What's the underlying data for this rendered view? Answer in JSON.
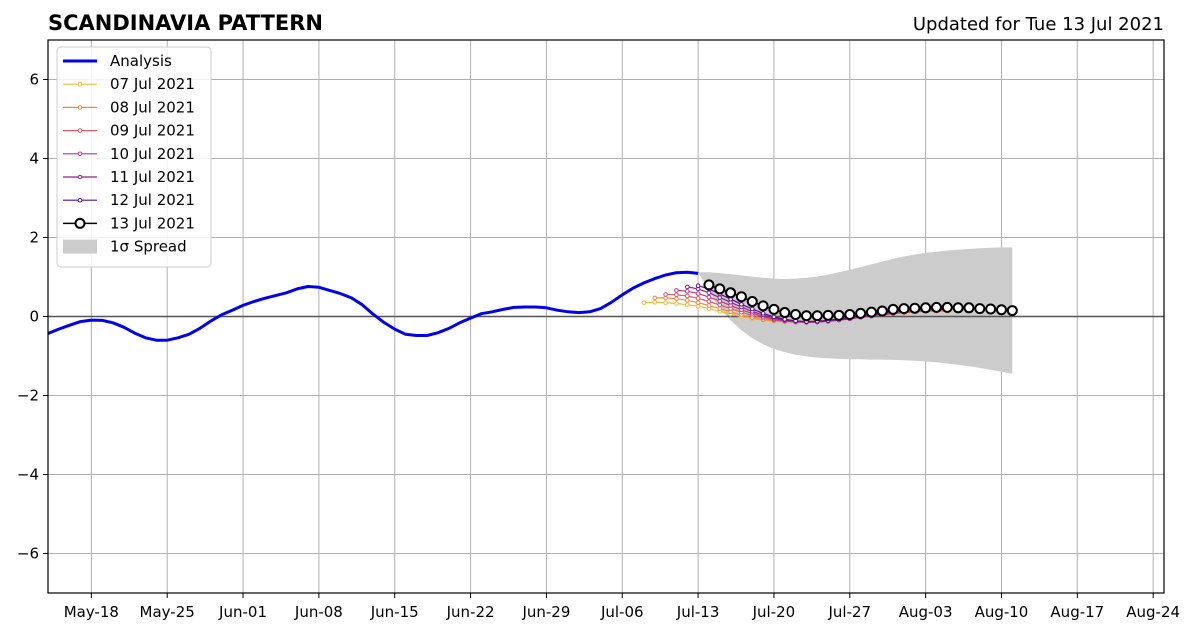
{
  "chart_data": {
    "type": "line",
    "title": "SCANDINAVIA PATTERN",
    "subtitle": "Updated for Tue 13 Jul 2021",
    "xlabel": "",
    "ylabel": "",
    "xlim": [
      "2021-05-14",
      "2021-08-25"
    ],
    "ylim": [
      -7,
      7
    ],
    "grid": true,
    "legend_position": "top-left",
    "x_tick_dates": [
      "2021-05-18",
      "2021-05-25",
      "2021-06-01",
      "2021-06-08",
      "2021-06-15",
      "2021-06-22",
      "2021-06-29",
      "2021-07-06",
      "2021-07-13",
      "2021-07-20",
      "2021-07-27",
      "2021-08-03",
      "2021-08-10",
      "2021-08-17",
      "2021-08-24"
    ],
    "x_tick_labels": [
      "May-18",
      "May-25",
      "Jun-01",
      "Jun-08",
      "Jun-15",
      "Jun-22",
      "Jun-29",
      "Jul-06",
      "Jul-13",
      "Jul-20",
      "Jul-27",
      "Aug-03",
      "Aug-10",
      "Aug-17",
      "Aug-24"
    ],
    "y_ticks": [
      -6,
      -4,
      -2,
      0,
      2,
      4,
      6
    ],
    "y_tick_labels": [
      "−6",
      "−4",
      "−2",
      "0",
      "2",
      "4",
      "6"
    ],
    "analysis": {
      "name": "Analysis",
      "color": "#0000ee",
      "points": [
        [
          "2021-05-14",
          -0.43
        ],
        [
          "2021-05-15",
          -0.32
        ],
        [
          "2021-05-16",
          -0.22
        ],
        [
          "2021-05-17",
          -0.13
        ],
        [
          "2021-05-18",
          -0.09
        ],
        [
          "2021-05-19",
          -0.1
        ],
        [
          "2021-05-20",
          -0.16
        ],
        [
          "2021-05-21",
          -0.27
        ],
        [
          "2021-05-22",
          -0.42
        ],
        [
          "2021-05-23",
          -0.54
        ],
        [
          "2021-05-24",
          -0.6
        ],
        [
          "2021-05-25",
          -0.6
        ],
        [
          "2021-05-26",
          -0.54
        ],
        [
          "2021-05-27",
          -0.45
        ],
        [
          "2021-05-28",
          -0.3
        ],
        [
          "2021-05-29",
          -0.12
        ],
        [
          "2021-05-30",
          0.04
        ],
        [
          "2021-05-31",
          0.16
        ],
        [
          "2021-06-01",
          0.28
        ],
        [
          "2021-06-02",
          0.38
        ],
        [
          "2021-06-03",
          0.46
        ],
        [
          "2021-06-04",
          0.53
        ],
        [
          "2021-06-05",
          0.6
        ],
        [
          "2021-06-06",
          0.7
        ],
        [
          "2021-06-07",
          0.76
        ],
        [
          "2021-06-08",
          0.74
        ],
        [
          "2021-06-09",
          0.66
        ],
        [
          "2021-06-10",
          0.58
        ],
        [
          "2021-06-11",
          0.47
        ],
        [
          "2021-06-12",
          0.3
        ],
        [
          "2021-06-13",
          0.06
        ],
        [
          "2021-06-14",
          -0.15
        ],
        [
          "2021-06-15",
          -0.32
        ],
        [
          "2021-06-16",
          -0.45
        ],
        [
          "2021-06-17",
          -0.48
        ],
        [
          "2021-06-18",
          -0.48
        ],
        [
          "2021-06-19",
          -0.41
        ],
        [
          "2021-06-20",
          -0.3
        ],
        [
          "2021-06-21",
          -0.16
        ],
        [
          "2021-06-22",
          -0.04
        ],
        [
          "2021-06-23",
          0.07
        ],
        [
          "2021-06-24",
          0.12
        ],
        [
          "2021-06-25",
          0.18
        ],
        [
          "2021-06-26",
          0.23
        ],
        [
          "2021-06-27",
          0.24
        ],
        [
          "2021-06-28",
          0.24
        ],
        [
          "2021-06-29",
          0.22
        ],
        [
          "2021-06-30",
          0.16
        ],
        [
          "2021-07-01",
          0.12
        ],
        [
          "2021-07-02",
          0.1
        ],
        [
          "2021-07-03",
          0.12
        ],
        [
          "2021-07-04",
          0.2
        ],
        [
          "2021-07-05",
          0.36
        ],
        [
          "2021-07-06",
          0.55
        ],
        [
          "2021-07-07",
          0.72
        ],
        [
          "2021-07-08",
          0.85
        ],
        [
          "2021-07-09",
          0.96
        ],
        [
          "2021-07-10",
          1.05
        ],
        [
          "2021-07-11",
          1.11
        ],
        [
          "2021-07-12",
          1.12
        ],
        [
          "2021-07-13",
          1.09
        ]
      ]
    },
    "forecasts": [
      {
        "name": "07 Jul 2021",
        "color": "#f5b82e",
        "start": "2021-07-08",
        "values": [
          0.35,
          0.36,
          0.35,
          0.33,
          0.3,
          0.26,
          0.2,
          0.13,
          0.06,
          0.0,
          -0.05,
          -0.09,
          -0.12,
          -0.13,
          -0.13,
          -0.12,
          -0.11,
          -0.09,
          -0.06,
          -0.03,
          0.0,
          0.03,
          0.06,
          0.08,
          0.1,
          0.12,
          0.13,
          0.14,
          0.14
        ]
      },
      {
        "name": "08 Jul 2021",
        "color": "#f0893e",
        "start": "2021-07-09",
        "values": [
          0.47,
          0.47,
          0.45,
          0.41,
          0.35,
          0.28,
          0.2,
          0.12,
          0.04,
          -0.03,
          -0.08,
          -0.11,
          -0.13,
          -0.14,
          -0.13,
          -0.12,
          -0.1,
          -0.07,
          -0.04,
          -0.01,
          0.02,
          0.05,
          0.08,
          0.1,
          0.12,
          0.13,
          0.14,
          0.14
        ]
      },
      {
        "name": "09 Jul 2021",
        "color": "#de5b68",
        "start": "2021-07-10",
        "values": [
          0.56,
          0.55,
          0.52,
          0.46,
          0.38,
          0.29,
          0.2,
          0.11,
          0.03,
          -0.04,
          -0.09,
          -0.12,
          -0.14,
          -0.14,
          -0.13,
          -0.11,
          -0.08,
          -0.05,
          -0.02,
          0.01,
          0.04,
          0.07,
          0.1,
          0.12,
          0.14,
          0.15,
          0.15
        ]
      },
      {
        "name": "10 Jul 2021",
        "color": "#b8397f",
        "start": "2021-07-11",
        "values": [
          0.66,
          0.64,
          0.58,
          0.49,
          0.39,
          0.28,
          0.17,
          0.08,
          0.0,
          -0.07,
          -0.11,
          -0.14,
          -0.15,
          -0.14,
          -0.12,
          -0.09,
          -0.06,
          -0.02,
          0.01,
          0.05,
          0.08,
          0.11,
          0.14,
          0.16,
          0.17,
          0.17
        ]
      },
      {
        "name": "11 Jul 2021",
        "color": "#8e1f96",
        "start": "2021-07-12",
        "values": [
          0.75,
          0.7,
          0.6,
          0.48,
          0.36,
          0.24,
          0.13,
          0.04,
          -0.04,
          -0.09,
          -0.12,
          -0.14,
          -0.14,
          -0.12,
          -0.09,
          -0.05,
          -0.01,
          0.03,
          0.07,
          0.11,
          0.14,
          0.16,
          0.18,
          0.19,
          0.19
        ]
      },
      {
        "name": "12 Jul 2021",
        "color": "#5a0c8e",
        "start": "2021-07-13",
        "values": [
          0.78,
          0.7,
          0.57,
          0.44,
          0.31,
          0.19,
          0.08,
          -0.01,
          -0.07,
          -0.11,
          -0.13,
          -0.12,
          -0.1,
          -0.06,
          -0.02,
          0.02,
          0.06,
          0.1,
          0.14,
          0.17,
          0.19,
          0.2,
          0.2,
          0.19
        ]
      }
    ],
    "current_forecast": {
      "name": "13 Jul 2021",
      "color": "#000000",
      "marker_face": "#ffffff",
      "start": "2021-07-14",
      "values": [
        0.8,
        0.7,
        0.6,
        0.5,
        0.38,
        0.27,
        0.18,
        0.1,
        0.05,
        0.02,
        0.02,
        0.03,
        0.03,
        0.05,
        0.08,
        0.11,
        0.14,
        0.18,
        0.2,
        0.21,
        0.22,
        0.23,
        0.23,
        0.22,
        0.22,
        0.2,
        0.19,
        0.17,
        0.15
      ]
    },
    "spread": {
      "name": "1σ Spread",
      "color": "#cccccc",
      "start": "2021-07-13",
      "upper": [
        1.12,
        1.12,
        1.1,
        1.07,
        1.04,
        1.01,
        0.98,
        0.96,
        0.95,
        0.96,
        0.98,
        1.01,
        1.06,
        1.12,
        1.18,
        1.25,
        1.32,
        1.39,
        1.46,
        1.52,
        1.57,
        1.61,
        1.64,
        1.67,
        1.69,
        1.71,
        1.73,
        1.74,
        1.75,
        1.75
      ],
      "lower": [
        1.12,
        0.65,
        0.2,
        -0.1,
        -0.35,
        -0.55,
        -0.7,
        -0.82,
        -0.9,
        -0.97,
        -1.01,
        -1.04,
        -1.06,
        -1.07,
        -1.08,
        -1.08,
        -1.09,
        -1.09,
        -1.1,
        -1.11,
        -1.12,
        -1.14,
        -1.16,
        -1.19,
        -1.22,
        -1.26,
        -1.3,
        -1.35,
        -1.4,
        -1.45
      ]
    }
  }
}
